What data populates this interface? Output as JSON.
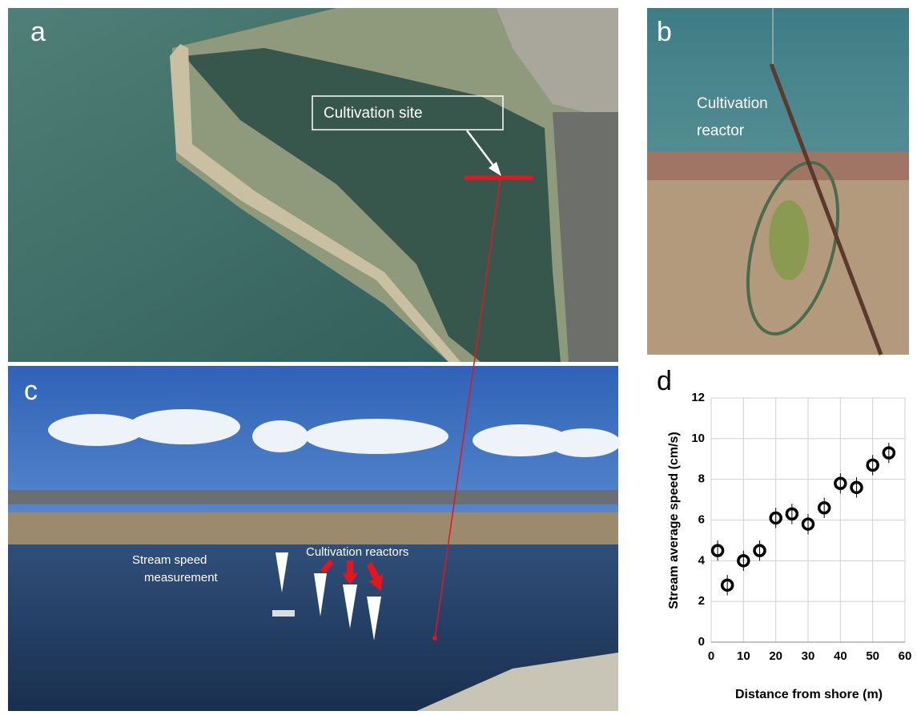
{
  "panels": {
    "a": {
      "label": "a",
      "annotation": "Cultivation site"
    },
    "b": {
      "label": "b",
      "annotation": [
        "Cultivation",
        "reactor"
      ]
    },
    "c": {
      "label": "c",
      "annotations": [
        [
          "Stream speed",
          "measurement"
        ],
        "Cultivation reactors"
      ]
    },
    "d": {
      "label": "d"
    }
  },
  "chart_data": {
    "type": "scatter",
    "x_label": "Distance from shore (m)",
    "y_label": "Stream average speed (cm/s)",
    "x": [
      2,
      5,
      10,
      15,
      20,
      25,
      30,
      35,
      40,
      45,
      50,
      55
    ],
    "values": [
      4.5,
      2.8,
      4.0,
      4.5,
      6.1,
      6.3,
      5.8,
      6.6,
      7.8,
      7.6,
      8.7,
      9.3
    ],
    "errors": [
      0.5,
      0.5,
      0.5,
      0.5,
      0.5,
      0.5,
      0.5,
      0.5,
      0.5,
      0.5,
      0.5,
      0.5
    ],
    "color": "#000000",
    "xlim": [
      0,
      60
    ],
    "xticks": [
      0,
      10,
      20,
      30,
      40,
      50,
      60
    ],
    "ylim": [
      0,
      12
    ],
    "yticks": [
      0,
      2,
      4,
      6,
      8,
      10,
      12
    ],
    "grid": true
  }
}
